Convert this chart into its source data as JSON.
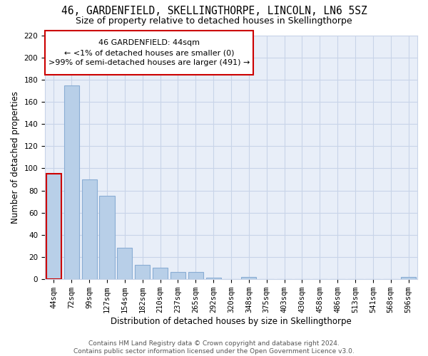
{
  "title": "46, GARDENFIELD, SKELLINGTHORPE, LINCOLN, LN6 5SZ",
  "subtitle": "Size of property relative to detached houses in Skellingthorpe",
  "xlabel": "Distribution of detached houses by size in Skellingthorpe",
  "ylabel": "Number of detached properties",
  "bar_values": [
    95,
    175,
    90,
    75,
    28,
    13,
    10,
    6,
    6,
    1,
    0,
    2,
    0,
    0,
    0,
    0,
    0,
    0,
    0,
    0,
    2
  ],
  "bar_labels": [
    "44sqm",
    "72sqm",
    "99sqm",
    "127sqm",
    "154sqm",
    "182sqm",
    "210sqm",
    "237sqm",
    "265sqm",
    "292sqm",
    "320sqm",
    "348sqm",
    "375sqm",
    "403sqm",
    "430sqm",
    "458sqm",
    "486sqm",
    "513sqm",
    "541sqm",
    "568sqm",
    "596sqm"
  ],
  "bar_color": "#b8cfe8",
  "bar_edge_color": "#8aadd4",
  "highlight_bar_index": 0,
  "highlight_bar_edge_color": "#cc0000",
  "annotation_box_text": "46 GARDENFIELD: 44sqm\n← <1% of detached houses are smaller (0)\n>99% of semi-detached houses are larger (491) →",
  "ylim": [
    0,
    220
  ],
  "yticks": [
    0,
    20,
    40,
    60,
    80,
    100,
    120,
    140,
    160,
    180,
    200,
    220
  ],
  "footer_text": "Contains HM Land Registry data © Crown copyright and database right 2024.\nContains public sector information licensed under the Open Government Licence v3.0.",
  "background_color": "#ffffff",
  "plot_bg_color": "#e8eef8",
  "grid_color": "#c8d4e8",
  "title_fontsize": 10.5,
  "subtitle_fontsize": 9,
  "axis_label_fontsize": 8.5,
  "tick_fontsize": 7.5,
  "annotation_fontsize": 8,
  "footer_fontsize": 6.5
}
